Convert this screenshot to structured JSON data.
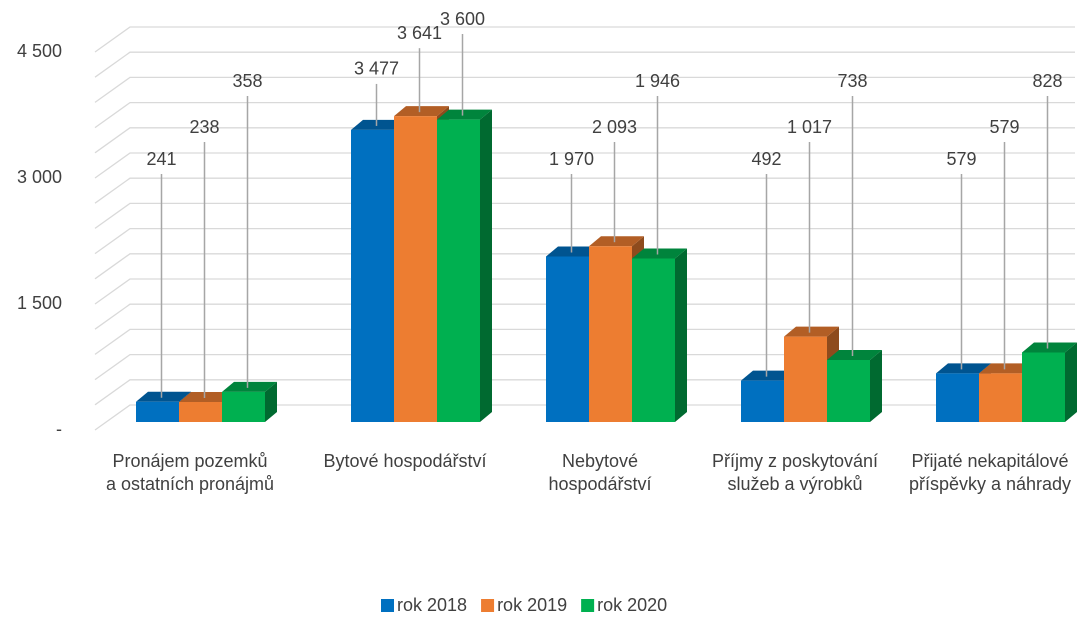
{
  "chart_data": {
    "type": "bar3d",
    "categories": [
      "Pronájem pozemků a ostatních pronájmů",
      "Bytové hospodářství",
      "Nebytové hospodářství",
      "Příjmy z poskytování služeb a výrobků",
      "Přijaté nekapitálové příspěvky a náhrady"
    ],
    "series": [
      {
        "name": "rok 2018",
        "color": "#0070c0",
        "values": [
          241,
          3477,
          1970,
          492,
          579
        ],
        "value_labels": [
          "241",
          "3 477",
          "1 970",
          "492",
          "579"
        ]
      },
      {
        "name": "rok 2019",
        "color": "#ed7d31",
        "values": [
          238,
          3641,
          2093,
          1017,
          579
        ],
        "value_labels": [
          "238",
          "3 641",
          "2 093",
          "1 017",
          "579"
        ]
      },
      {
        "name": "rok 2020",
        "color": "#00b050",
        "values": [
          358,
          3600,
          1946,
          738,
          828
        ],
        "value_labels": [
          "358",
          "3 600",
          "1 946",
          "738",
          "828"
        ]
      }
    ],
    "ylim": [
      0,
      4500
    ],
    "yticks": [
      {
        "value": 0,
        "label": "-"
      },
      {
        "value": 1500,
        "label": "1 500"
      },
      {
        "value": 3000,
        "label": "3 000"
      },
      {
        "value": 4500,
        "label": "4 500"
      }
    ],
    "minor_yticks": [
      300,
      600,
      900,
      1200,
      1800,
      2100,
      2400,
      2700,
      3300,
      3600,
      3900,
      4200
    ],
    "grid": true,
    "legend": "bottom"
  }
}
